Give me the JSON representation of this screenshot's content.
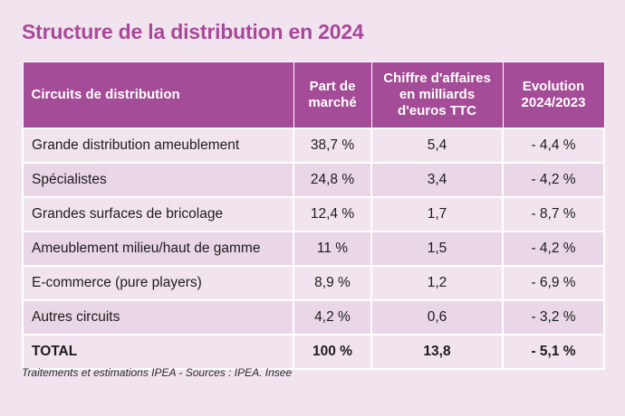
{
  "title": "Structure de la distribution en 2024",
  "table": {
    "headers": {
      "col1": "Circuits de distribution",
      "col2_line1": "Part de",
      "col2_line2": "marché",
      "col3_line1": "Chiffre d'affaires",
      "col3_line2": "en milliards",
      "col3_line3": "d'euros TTC",
      "col4_line1": "Evolution",
      "col4_line2": "2024/2023"
    },
    "rows": [
      {
        "circuit": "Grande distribution ameublement",
        "part": "38,7 %",
        "ca": "5,4",
        "evolution": "- 4,4 %"
      },
      {
        "circuit": "Spécialistes",
        "part": "24,8 %",
        "ca": "3,4",
        "evolution": "- 4,2 %"
      },
      {
        "circuit": "Grandes surfaces de bricolage",
        "part": "12,4 %",
        "ca": "1,7",
        "evolution": "- 8,7 %"
      },
      {
        "circuit": "Ameublement milieu/haut de gamme",
        "part": "11 %",
        "ca": "1,5",
        "evolution": "- 4,2 %"
      },
      {
        "circuit": "E-commerce (pure players)",
        "part": "8,9 %",
        "ca": "1,2",
        "evolution": "- 6,9 %"
      },
      {
        "circuit": "Autres circuits",
        "part": "4,2 %",
        "ca": "0,6",
        "evolution": "- 3,2 %"
      }
    ],
    "total": {
      "circuit": "TOTAL",
      "part": "100 %",
      "ca": "13,8",
      "evolution": "- 5,1 %"
    }
  },
  "footnote": "Traitements et estimations IPEA - Sources : IPEA. Insee",
  "colors": {
    "accent": "#a9489a",
    "header_bg": "#a44c97",
    "row_light": "#f1e4ef",
    "row_dark": "#e9d6e6"
  }
}
